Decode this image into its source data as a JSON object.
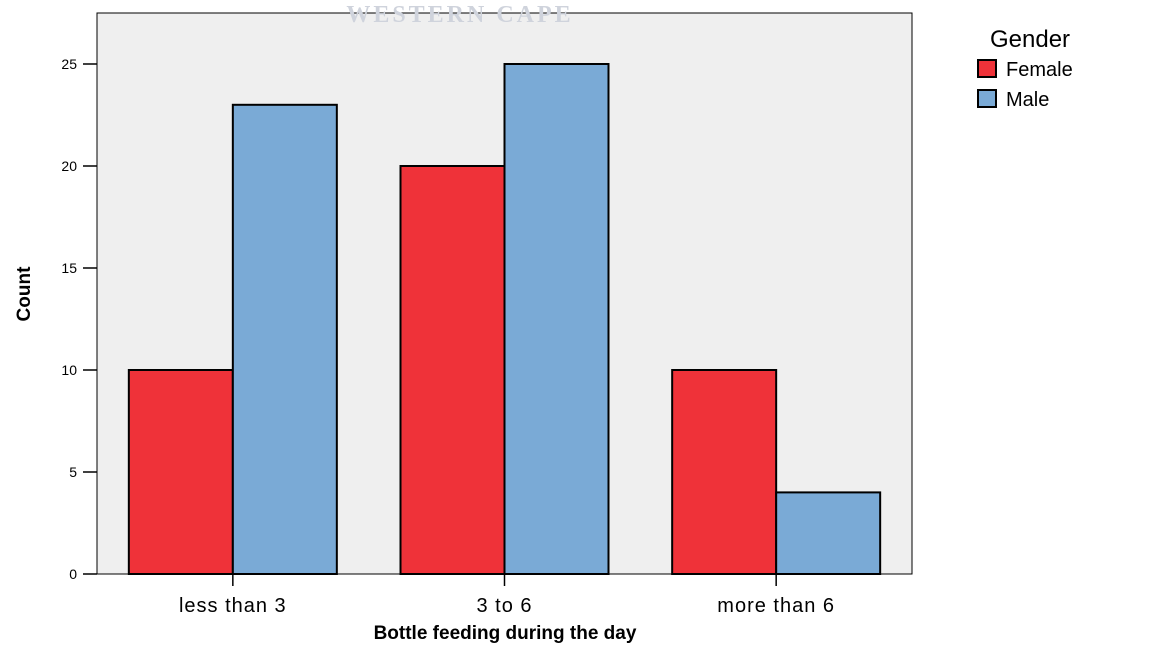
{
  "watermark": "WESTERN CAPE",
  "chart_data": {
    "type": "bar",
    "categories": [
      "less than 3",
      "3 to 6",
      "more than 6"
    ],
    "series": [
      {
        "name": "Female",
        "values": [
          10,
          20,
          10
        ],
        "color": "#ef3239"
      },
      {
        "name": "Male",
        "values": [
          23,
          25,
          4
        ],
        "color": "#7aaad6"
      }
    ],
    "xlabel": "Bottle feeding during the day",
    "ylabel": "Count",
    "ylim": [
      0,
      27.5
    ],
    "yticks": [
      0,
      5,
      10,
      15,
      20,
      25
    ],
    "legend_title": "Gender",
    "legend_position": "top-right",
    "plot_background": "#efefef",
    "grid": false
  }
}
